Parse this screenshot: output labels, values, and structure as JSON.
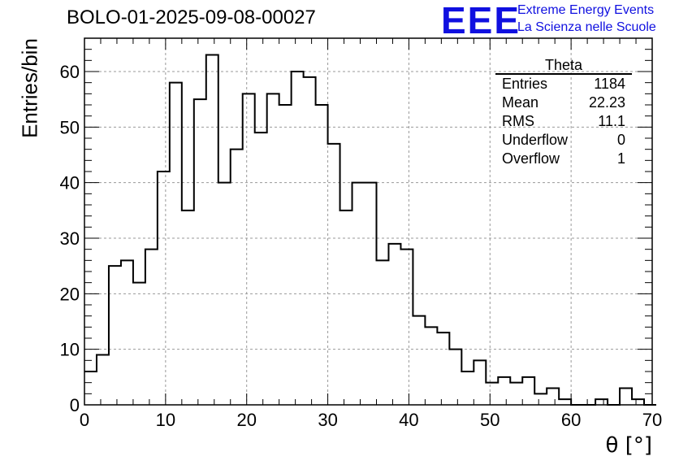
{
  "header": {
    "title": "BOLO-01-2025-09-08-00027",
    "logo_text": "EEE",
    "logo_line1": "Extreme Energy Events",
    "logo_line2": "La Scienza nelle Scuole",
    "logo_color": "#1010e0"
  },
  "stats_box": {
    "title": "Theta",
    "rows": [
      {
        "label": "Entries",
        "value": "1184"
      },
      {
        "label": "Mean",
        "value": "22.23"
      },
      {
        "label": "RMS",
        "value": "11.1"
      },
      {
        "label": "Underflow",
        "value": "0"
      },
      {
        "label": "Overflow",
        "value": "1"
      }
    ]
  },
  "chart_data": {
    "type": "bar",
    "style": "step-histogram",
    "title": "BOLO-01-2025-09-08-00027",
    "xlabel": "θ [°]",
    "ylabel": "Entries/bin",
    "xlim": [
      0,
      70
    ],
    "ylim": [
      0,
      66
    ],
    "xticks": [
      0,
      10,
      20,
      30,
      40,
      50,
      60,
      70
    ],
    "yticks": [
      0,
      10,
      20,
      30,
      40,
      50,
      60
    ],
    "grid": true,
    "bin_width": 1.5,
    "bin_edges_start": 0,
    "values": [
      6,
      9,
      25,
      26,
      22,
      28,
      42,
      58,
      35,
      55,
      63,
      40,
      46,
      56,
      49,
      56,
      54,
      60,
      59,
      54,
      47,
      35,
      40,
      40,
      26,
      29,
      28,
      16,
      14,
      13,
      10,
      6,
      8,
      4,
      5,
      4,
      5,
      2,
      3,
      1,
      0,
      0,
      1,
      0,
      3,
      1,
      0
    ],
    "line_color": "#000000",
    "grid_color": "#999999"
  }
}
